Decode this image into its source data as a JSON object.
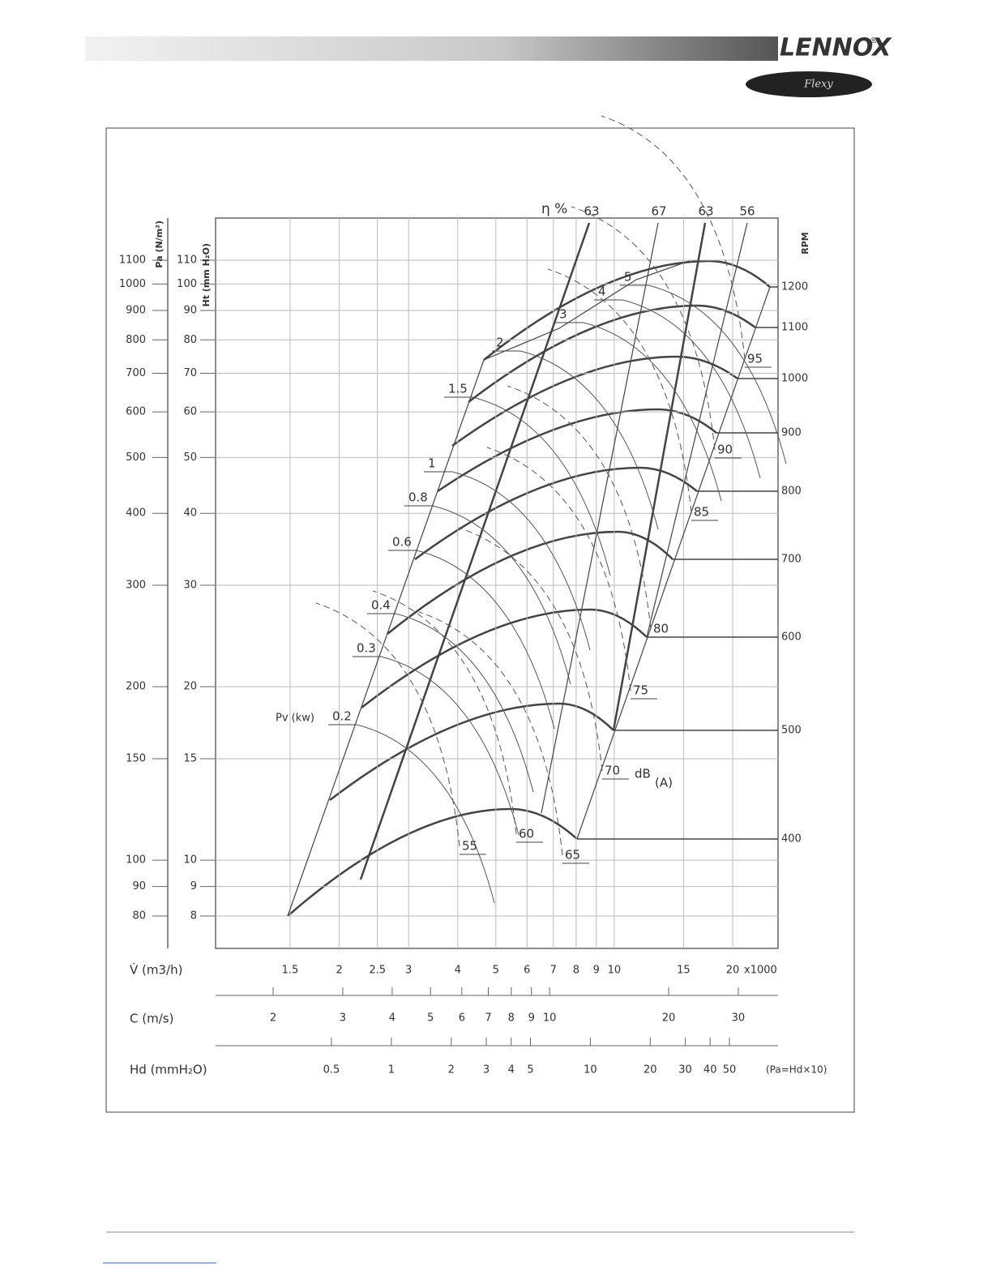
{
  "header": {
    "brand": "LENNOX",
    "registered": "®",
    "product": "Flexy"
  },
  "chart": {
    "efficiency": {
      "label": "η %",
      "values": [
        63,
        67,
        63,
        56
      ]
    },
    "pa": {
      "title": "Pa (N/m²)",
      "ticks": [
        80,
        90,
        100,
        150,
        200,
        300,
        400,
        500,
        600,
        700,
        800,
        900,
        1000,
        1100
      ]
    },
    "ht": {
      "title": "Ht (mm H₂O)",
      "ticks": [
        8,
        9,
        10,
        15,
        20,
        30,
        40,
        50,
        60,
        70,
        80,
        90,
        100,
        110
      ]
    },
    "rpm": {
      "title": "RPM",
      "ticks": [
        400,
        500,
        600,
        700,
        800,
        900,
        1000,
        1100,
        1200
      ]
    },
    "power": {
      "label": "Pv (kw)",
      "values": [
        0.2,
        0.3,
        0.4,
        0.6,
        0.8,
        1,
        1.5,
        2,
        3,
        4,
        5
      ]
    },
    "noise": {
      "values": [
        55,
        60,
        65,
        70,
        75,
        80,
        85,
        90,
        95
      ],
      "unit": "dB",
      "unit_suffix": "(A)"
    },
    "flow": {
      "label": "V̇ (m3/h)",
      "ticks": [
        1.5,
        2,
        2.5,
        3,
        4,
        5,
        6,
        7,
        8,
        9,
        10,
        15,
        20
      ],
      "multiplier": "x1000"
    },
    "velocity": {
      "label": "C (m/s)",
      "ticks": [
        2,
        3,
        4,
        5,
        6,
        7,
        8,
        9,
        10,
        20,
        30
      ]
    },
    "dynamic_pressure": {
      "label": "Hd (mmH₂O)",
      "ticks": [
        0.5,
        1,
        2,
        3,
        4,
        5,
        10,
        20,
        30,
        40,
        50
      ],
      "note": "(Pa=Hd×10)"
    }
  }
}
